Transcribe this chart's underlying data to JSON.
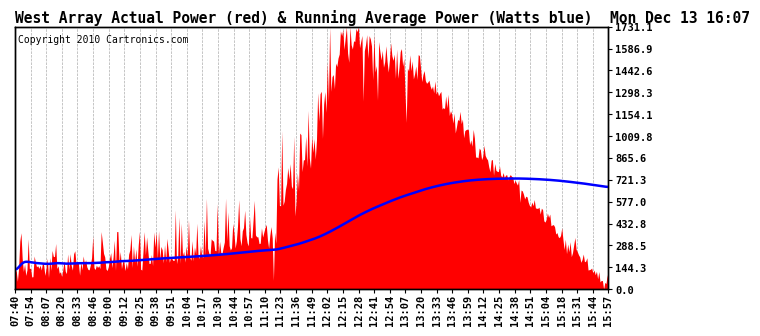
{
  "title": "West Array Actual Power (red) & Running Average Power (Watts blue)  Mon Dec 13 16:07",
  "copyright": "Copyright 2010 Cartronics.com",
  "ylabel_right_ticks": [
    0.0,
    144.3,
    288.5,
    432.8,
    577.0,
    721.3,
    865.6,
    1009.8,
    1154.1,
    1298.3,
    1442.6,
    1586.9,
    1731.1
  ],
  "ymax": 1731.1,
  "ymin": 0.0,
  "bar_color": "#FF0000",
  "line_color": "#0000FF",
  "background_color": "#FFFFFF",
  "grid_color": "#999999",
  "title_fontsize": 10.5,
  "copyright_fontsize": 7,
  "tick_fontsize": 7.5,
  "x_labels": [
    "07:40",
    "07:54",
    "08:07",
    "08:20",
    "08:33",
    "08:46",
    "09:00",
    "09:12",
    "09:25",
    "09:38",
    "09:51",
    "10:04",
    "10:17",
    "10:30",
    "10:44",
    "10:57",
    "11:10",
    "11:23",
    "11:36",
    "11:49",
    "12:02",
    "12:15",
    "12:28",
    "12:41",
    "12:54",
    "13:07",
    "13:20",
    "13:33",
    "13:46",
    "13:59",
    "14:12",
    "14:25",
    "14:38",
    "14:51",
    "15:04",
    "15:18",
    "15:31",
    "15:44",
    "15:57"
  ]
}
